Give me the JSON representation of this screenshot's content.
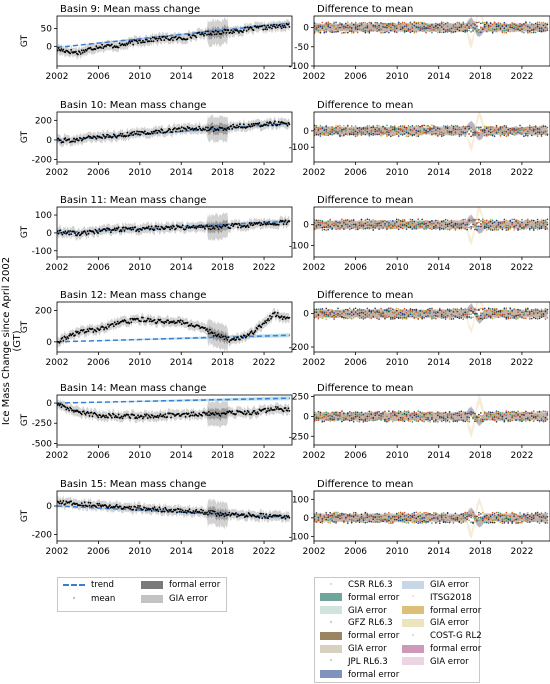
{
  "figure": {
    "ylabel": "Ice Mass Change since April 2002 (GT)"
  },
  "chart_data": [
    {
      "type": "line",
      "panel": "mean",
      "title": "Basin 9: Mean mass change",
      "ylabel": "GT",
      "xlim": [
        2002,
        2024.7
      ],
      "xticks": [
        2002,
        2006,
        2010,
        2014,
        2018,
        2022
      ],
      "ylim": [
        -55,
        85
      ],
      "yticks": [
        0,
        50
      ],
      "series": [
        {
          "name": "trend",
          "x": [
            2002,
            2024.5
          ],
          "y": [
            -3,
            65
          ]
        },
        {
          "name": "mean",
          "x": [
            2002,
            2004,
            2006,
            2008,
            2010,
            2012,
            2014,
            2016,
            2017.5,
            2019,
            2021,
            2023,
            2024.5
          ],
          "y": [
            -8,
            -18,
            0,
            2,
            15,
            22,
            22,
            35,
            40,
            42,
            50,
            55,
            58
          ]
        }
      ]
    },
    {
      "type": "scatter",
      "panel": "difference",
      "title": "Difference to mean",
      "xlim": [
        2002,
        2024.7
      ],
      "xticks": [
        2002,
        2006,
        2010,
        2014,
        2018,
        2022
      ],
      "ylim": [
        -100,
        30
      ],
      "yticks": [
        0,
        -50,
        -100
      ]
    },
    {
      "type": "line",
      "panel": "mean",
      "title": "Basin 10: Mean mass change",
      "ylabel": "GT",
      "xlim": [
        2002,
        2024.7
      ],
      "xticks": [
        2002,
        2006,
        2010,
        2014,
        2018,
        2022
      ],
      "ylim": [
        -225,
        285
      ],
      "yticks": [
        200,
        0,
        -200
      ],
      "series": [
        {
          "name": "trend",
          "x": [
            2002,
            2024.5
          ],
          "y": [
            -8,
            170
          ]
        },
        {
          "name": "mean",
          "x": [
            2002,
            2004,
            2006,
            2008,
            2010,
            2012,
            2014,
            2016,
            2017.5,
            2019,
            2021,
            2023,
            2024.5
          ],
          "y": [
            -10,
            5,
            30,
            45,
            70,
            90,
            110,
            120,
            105,
            135,
            150,
            170,
            160
          ]
        }
      ]
    },
    {
      "type": "scatter",
      "panel": "difference",
      "title": "Difference to mean",
      "xlim": [
        2002,
        2024.7
      ],
      "xticks": [
        2002,
        2006,
        2010,
        2014,
        2018,
        2022
      ],
      "ylim": [
        -190,
        115
      ],
      "yticks": [
        0,
        -100
      ]
    },
    {
      "type": "line",
      "panel": "mean",
      "title": "Basin 11: Mean mass change",
      "ylabel": "GT",
      "xlim": [
        2002,
        2024.7
      ],
      "xticks": [
        2002,
        2006,
        2010,
        2014,
        2018,
        2022
      ],
      "ylim": [
        -135,
        145
      ],
      "yticks": [
        100,
        0,
        -100
      ],
      "series": [
        {
          "name": "trend",
          "x": [
            2002,
            2024.5
          ],
          "y": [
            0,
            65
          ]
        },
        {
          "name": "mean",
          "x": [
            2002,
            2004,
            2006,
            2008,
            2010,
            2012,
            2014,
            2016,
            2017.5,
            2019,
            2021,
            2023,
            2024.5
          ],
          "y": [
            5,
            -5,
            10,
            20,
            20,
            30,
            30,
            35,
            30,
            40,
            45,
            55,
            60
          ]
        }
      ]
    },
    {
      "type": "scatter",
      "panel": "difference",
      "title": "Difference to mean",
      "xlim": [
        2002,
        2024.7
      ],
      "xticks": [
        2002,
        2006,
        2010,
        2014,
        2018,
        2022
      ],
      "ylim": [
        -155,
        85
      ],
      "yticks": [
        0,
        -100
      ]
    },
    {
      "type": "line",
      "panel": "mean",
      "title": "Basin 12: Mean mass change",
      "ylabel": "GT",
      "xlim": [
        2002,
        2024.7
      ],
      "xticks": [
        2002,
        2006,
        2010,
        2014,
        2018,
        2022
      ],
      "ylim": [
        -65,
        255
      ],
      "yticks": [
        200,
        0
      ],
      "series": [
        {
          "name": "trend",
          "x": [
            2002,
            2024.5
          ],
          "y": [
            0,
            42
          ]
        },
        {
          "name": "mean",
          "x": [
            2002,
            2004,
            2006,
            2008,
            2010,
            2012,
            2014,
            2016,
            2017.5,
            2019,
            2021,
            2023,
            2024.5
          ],
          "y": [
            0,
            60,
            80,
            120,
            145,
            130,
            125,
            90,
            40,
            5,
            60,
            180,
            140
          ]
        }
      ]
    },
    {
      "type": "scatter",
      "panel": "difference",
      "title": "Difference to mean",
      "xlim": [
        2002,
        2024.7
      ],
      "xticks": [
        2002,
        2006,
        2010,
        2014,
        2018,
        2022
      ],
      "ylim": [
        -230,
        70
      ],
      "yticks": [
        0,
        -200
      ]
    },
    {
      "type": "line",
      "panel": "mean",
      "title": "Basin 14: Mean mass change",
      "ylabel": "GT",
      "xlim": [
        2002,
        2024.7
      ],
      "xticks": [
        2002,
        2006,
        2010,
        2014,
        2018,
        2022
      ],
      "ylim": [
        -520,
        100
      ],
      "yticks": [
        0,
        -250,
        -500
      ],
      "series": [
        {
          "name": "trend",
          "x": [
            2002,
            2024.5
          ],
          "y": [
            0,
            60
          ]
        },
        {
          "name": "mean",
          "x": [
            2002,
            2004,
            2006,
            2008,
            2010,
            2012,
            2014,
            2016,
            2017.5,
            2019,
            2021,
            2023,
            2024.5
          ],
          "y": [
            0,
            -120,
            -150,
            -160,
            -170,
            -150,
            -155,
            -130,
            -140,
            -120,
            -120,
            -70,
            -80
          ]
        }
      ]
    },
    {
      "type": "scatter",
      "panel": "difference",
      "title": "Difference to mean",
      "xlim": [
        2002,
        2024.7
      ],
      "xticks": [
        2002,
        2006,
        2010,
        2014,
        2018,
        2022
      ],
      "ylim": [
        -360,
        270
      ],
      "yticks": [
        250,
        0,
        -250
      ]
    },
    {
      "type": "line",
      "panel": "mean",
      "title": "Basin 15: Mean mass change",
      "ylabel": "GT",
      "xlim": [
        2002,
        2024.7
      ],
      "xticks": [
        2002,
        2006,
        2010,
        2014,
        2018,
        2022
      ],
      "ylim": [
        -245,
        105
      ],
      "yticks": [
        0,
        -200
      ],
      "series": [
        {
          "name": "trend",
          "x": [
            2002,
            2024.5
          ],
          "y": [
            0,
            -80
          ]
        },
        {
          "name": "mean",
          "x": [
            2002,
            2004,
            2006,
            2008,
            2010,
            2012,
            2014,
            2016,
            2017.5,
            2019,
            2021,
            2023,
            2024.5
          ],
          "y": [
            20,
            20,
            5,
            -5,
            -15,
            -25,
            -35,
            -40,
            -55,
            -60,
            -65,
            -75,
            -80
          ]
        }
      ]
    },
    {
      "type": "scatter",
      "panel": "difference",
      "title": "Difference to mean",
      "xlim": [
        2002,
        2024.7
      ],
      "xticks": [
        2002,
        2006,
        2010,
        2014,
        2018,
        2022
      ],
      "ylim": [
        -125,
        145
      ],
      "yticks": [
        100,
        0,
        -100
      ]
    }
  ],
  "legend_left": {
    "items": [
      {
        "label": "trend",
        "kind": "dash",
        "color": "#3a7fd0"
      },
      {
        "label": "mean",
        "kind": "dot",
        "color": "#000000"
      },
      {
        "label": "formal error",
        "kind": "patch",
        "color": "#7a7a7a"
      },
      {
        "label": "GIA error",
        "kind": "patch",
        "color": "#c3c3c3"
      }
    ]
  },
  "legend_right": {
    "items": [
      {
        "label": "CSR RL6.3",
        "kind": "dot",
        "color": "#d0562a"
      },
      {
        "label": "formal error",
        "kind": "patch",
        "color": "#6fa59a"
      },
      {
        "label": "GIA error",
        "kind": "patch",
        "color": "#cfe3df"
      },
      {
        "label": "GFZ RL6.3",
        "kind": "dot",
        "color": "#3d2c1e"
      },
      {
        "label": "formal error",
        "kind": "patch",
        "color": "#9b8462"
      },
      {
        "label": "GIA error",
        "kind": "patch",
        "color": "#d8d0c0"
      },
      {
        "label": "JPL RL6.3",
        "kind": "dot",
        "color": "#1f3f86"
      },
      {
        "label": "formal error",
        "kind": "patch",
        "color": "#8192bf"
      },
      {
        "label": "GIA error",
        "kind": "patch",
        "color": "#c8d6e8"
      },
      {
        "label": "ITSG2018",
        "kind": "dot",
        "color": "#c9a33d"
      },
      {
        "label": "formal error",
        "kind": "patch",
        "color": "#ddbf78"
      },
      {
        "label": "GIA error",
        "kind": "patch",
        "color": "#ebe4bf"
      },
      {
        "label": "COST-G RL2",
        "kind": "dot",
        "color": "#35a07f"
      },
      {
        "label": "formal error",
        "kind": "patch",
        "color": "#cc9ab8"
      },
      {
        "label": "GIA error",
        "kind": "patch",
        "color": "#ecd4e2"
      }
    ]
  }
}
